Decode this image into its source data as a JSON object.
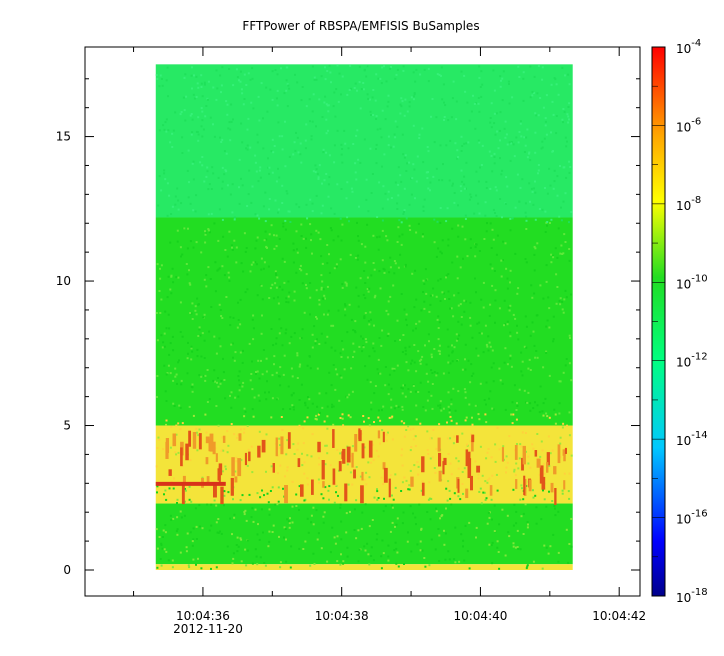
{
  "chart_data": {
    "type": "heatmap",
    "title": "FFTPower of RBSPA/EMFISIS  BuSamples",
    "xlabel": "",
    "ylabel": "",
    "x_range": [
      "10:04:34.30",
      "10:04:42.30"
    ],
    "x_ticks": [
      "10:04:36",
      "10:04:38",
      "10:04:40",
      "10:04:42"
    ],
    "x_date_label": "2012-11-20",
    "ylim": [
      -0.9,
      18.1
    ],
    "y_ticks": [
      0,
      5,
      10,
      15
    ],
    "data_extent": {
      "x_start": "10:04:35.32",
      "x_end": "10:04:41.33",
      "y_min": 0,
      "y_max": 17.5
    },
    "colorbar": {
      "scale": "log",
      "range": [
        1e-18,
        0.0001
      ],
      "tick_labels": [
        {
          "base": "10",
          "exp": "-4"
        },
        {
          "base": "10",
          "exp": "-6"
        },
        {
          "base": "10",
          "exp": "-8"
        },
        {
          "base": "10",
          "exp": "-10"
        },
        {
          "base": "10",
          "exp": "-12"
        },
        {
          "base": "10",
          "exp": "-14"
        },
        {
          "base": "10",
          "exp": "-16"
        },
        {
          "base": "10",
          "exp": "-18"
        }
      ]
    },
    "bands": [
      {
        "y_from": 12.2,
        "y_to": 17.5,
        "approx_power": 1e-12
      },
      {
        "y_from": 5.0,
        "y_to": 12.2,
        "approx_power": 1e-10
      },
      {
        "y_from": 2.3,
        "y_to": 5.0,
        "approx_power": 1e-08
      },
      {
        "y_from": 0.2,
        "y_to": 2.3,
        "approx_power": 1e-10
      },
      {
        "y_from": 0.0,
        "y_to": 0.2,
        "approx_power": 1e-08
      }
    ],
    "grid": false,
    "colors": {
      "top_band": "#27e964",
      "mid_band": "#22dd22",
      "hot_band": "#f4e43a",
      "intense": "#e2541a",
      "colormap": [
        "#00008b",
        "#0000ff",
        "#00c8ff",
        "#00ff80",
        "#22dd22",
        "#ffff00",
        "#ffa500",
        "#ff0000"
      ]
    }
  }
}
